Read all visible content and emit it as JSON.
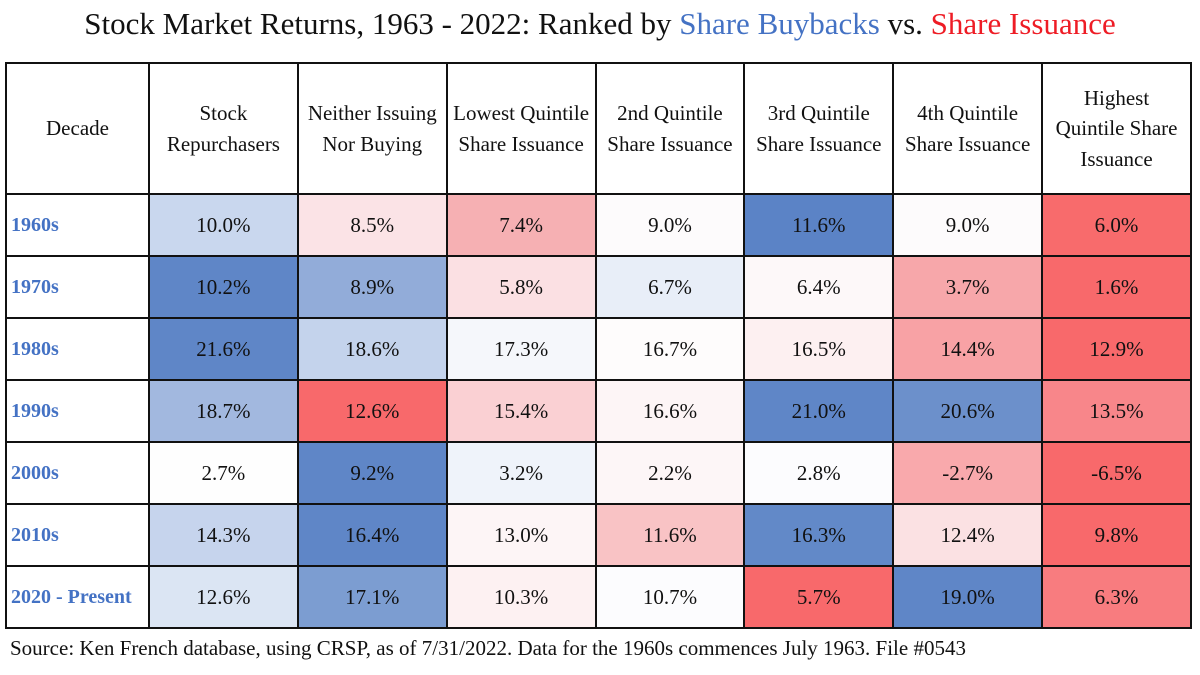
{
  "title": {
    "parts": [
      {
        "text": "Stock Market Returns, 1963 - 2022: Ranked by ",
        "color": "#111111"
      },
      {
        "text": "Share Buybacks",
        "color": "#4472c4"
      },
      {
        "text": " vs. ",
        "color": "#111111"
      },
      {
        "text": "Share Issuance",
        "color": "#ee1c25"
      }
    ]
  },
  "table": {
    "header": [
      "Decade",
      "Stock Repurchasers",
      "Neither Issuing Nor Buying",
      "Lowest Quintile Share Issuance",
      "2nd Quintile Share Issuance",
      "3rd Quintile Share Issuance",
      "4th Quintile Share Issuance",
      "Highest Quintile Share Issuance"
    ],
    "row_label_color": "#4472c4",
    "rows": [
      [
        "1960s",
        "10.0%",
        "8.5%",
        "7.4%",
        "9.0%",
        "11.6%",
        "9.0%",
        "6.0%"
      ],
      [
        "1970s",
        "10.2%",
        "8.9%",
        "5.8%",
        "6.7%",
        "6.4%",
        "3.7%",
        "1.6%"
      ],
      [
        "1980s",
        "21.6%",
        "18.6%",
        "17.3%",
        "16.7%",
        "16.5%",
        "14.4%",
        "12.9%"
      ],
      [
        "1990s",
        "18.7%",
        "12.6%",
        "15.4%",
        "16.6%",
        "21.0%",
        "20.6%",
        "13.5%"
      ],
      [
        "2000s",
        "2.7%",
        "9.2%",
        "3.2%",
        "2.2%",
        "2.8%",
        "-2.7%",
        "-6.5%"
      ],
      [
        "2010s",
        "14.3%",
        "16.4%",
        "13.0%",
        "11.6%",
        "16.3%",
        "12.4%",
        "9.8%"
      ],
      [
        "2020 - Present",
        "12.6%",
        "17.1%",
        "10.3%",
        "10.7%",
        "5.7%",
        "19.0%",
        "6.3%"
      ]
    ],
    "colors": [
      [
        "#c9d7ee",
        "#fbe3e6",
        "#f6b0b3",
        "#fdfbfc",
        "#5b83c6",
        "#fdfbfc",
        "#f86b6c"
      ],
      [
        "#5f86c7",
        "#92acd9",
        "#fbe0e3",
        "#e8eef8",
        "#fdf8f9",
        "#f7a7aa",
        "#f8696b"
      ],
      [
        "#5f86c7",
        "#c4d3ec",
        "#f5f7fb",
        "#fefcfc",
        "#fdf0f1",
        "#f8a2a5",
        "#f8696b"
      ],
      [
        "#a2b8df",
        "#f8696b",
        "#fad0d3",
        "#fdf5f6",
        "#5f86c7",
        "#6c90cb",
        "#f8868a"
      ],
      [
        "#fefefe",
        "#5f86c7",
        "#eff3fa",
        "#fdf6f7",
        "#fcfcfe",
        "#f9a9ac",
        "#f8696b"
      ],
      [
        "#c6d4ed",
        "#5f86c7",
        "#fdf5f6",
        "#f9c3c5",
        "#6289c8",
        "#fbe1e3",
        "#f8696b"
      ],
      [
        "#dbe5f3",
        "#7c9dd1",
        "#fdf1f2",
        "#fcfcfe",
        "#f8696b",
        "#5f86c7",
        "#f87c7f"
      ]
    ]
  },
  "footer": "Source: Ken French database, using CRSP, as of 7/31/2022. Data for the 1960s commences July 1963. File #0543"
}
